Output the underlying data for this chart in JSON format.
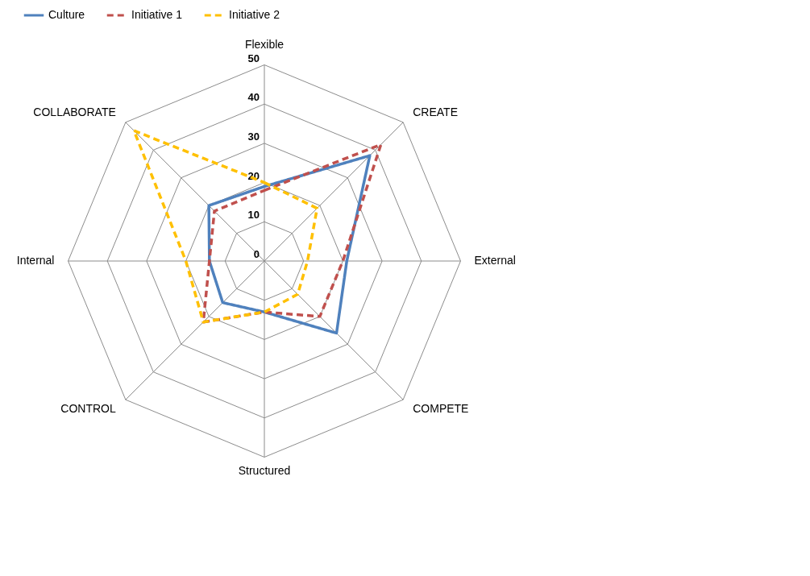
{
  "chart_data": {
    "type": "radar",
    "categories": [
      "Flexible",
      "CREATE",
      "External",
      "COMPETE",
      "Structured",
      "CONTROL",
      "Internal",
      "COLLABORATE"
    ],
    "series": [
      {
        "name": "Culture",
        "color": "#4f81bd",
        "line_style": "solid",
        "values": [
          19,
          38,
          21,
          26,
          13,
          15,
          14,
          20
        ]
      },
      {
        "name": "Initiative 1",
        "color": "#c0504d",
        "line_style": "dashed",
        "values": [
          18,
          42,
          20,
          20,
          13,
          22,
          14,
          18
        ]
      },
      {
        "name": "Initiative 2",
        "color": "#ffc000",
        "line_style": "dashed",
        "values": [
          20,
          19,
          11,
          12,
          13,
          22,
          20,
          47
        ]
      }
    ],
    "ylim": [
      0,
      50
    ],
    "yticks": [
      0,
      10,
      20,
      30,
      40,
      50
    ],
    "grid": true,
    "legend": "top",
    "marker": "none"
  }
}
